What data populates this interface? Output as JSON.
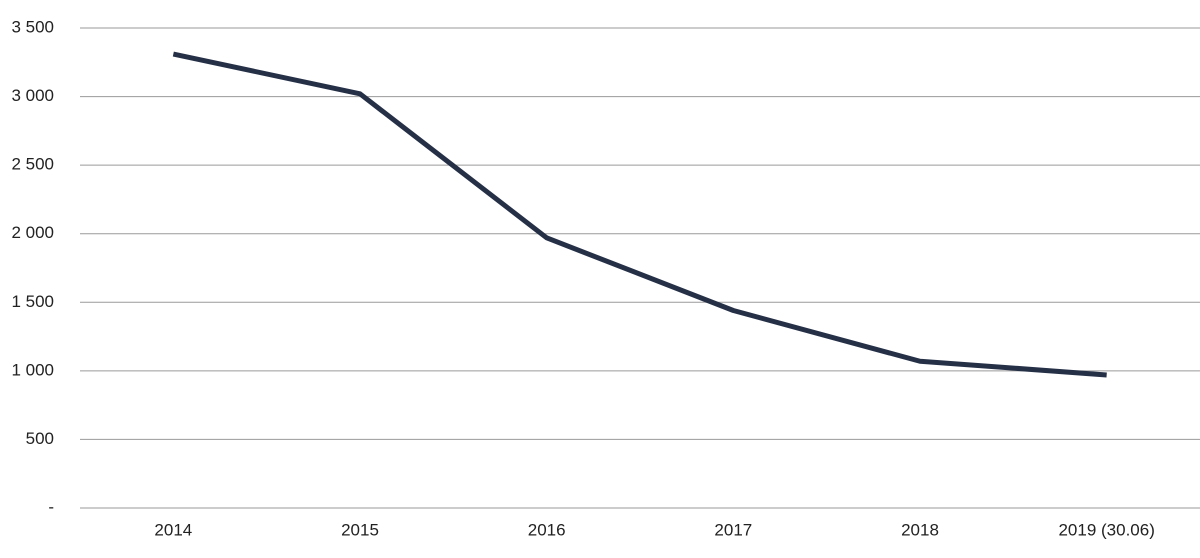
{
  "chart_data": {
    "type": "line",
    "categories": [
      "2014",
      "2015",
      "2016",
      "2017",
      "2018",
      "2019 (30.06)"
    ],
    "series": [
      {
        "color": "#253047",
        "values": [
          3310,
          3020,
          1970,
          1440,
          1070,
          970
        ]
      }
    ],
    "ylim": [
      0,
      3500
    ],
    "yticks": [
      {
        "value": 0,
        "label": "-"
      },
      {
        "value": 500,
        "label": "500"
      },
      {
        "value": 1000,
        "label": "1 000"
      },
      {
        "value": 1500,
        "label": "1 500"
      },
      {
        "value": 2000,
        "label": "2 000"
      },
      {
        "value": 2500,
        "label": "2 500"
      },
      {
        "value": 3000,
        "label": "3 000"
      },
      {
        "value": 3500,
        "label": "3 500"
      }
    ],
    "grid": true
  }
}
